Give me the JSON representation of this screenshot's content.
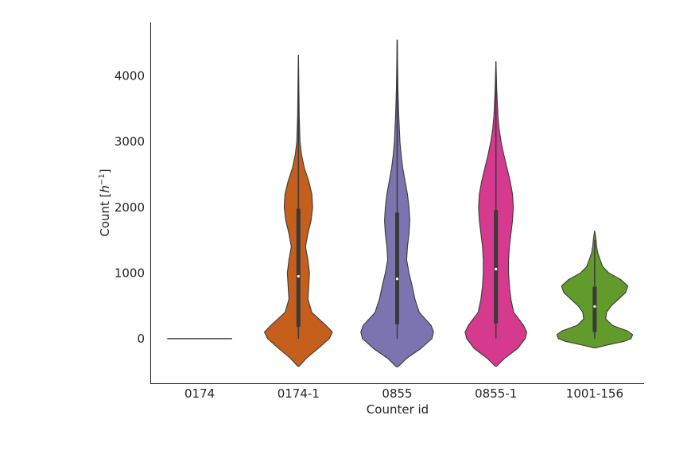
{
  "chart_data": {
    "type": "violin",
    "title": "",
    "xlabel": "Counter id",
    "ylabel_main": "Count [",
    "ylabel_italic": "h",
    "ylabel_sup": "−1",
    "ylabel_end": "]",
    "ylim": [
      -680,
      4820
    ],
    "yticks": [
      0,
      1000,
      2000,
      3000,
      4000
    ],
    "ytick_labels": [
      "0",
      "1000",
      "2000",
      "3000",
      "4000"
    ],
    "grid": false,
    "categories": [
      "0174",
      "0174-1",
      "0855",
      "0855-1",
      "1001-156"
    ],
    "violins": [
      {
        "category": "0174",
        "color": "#444444",
        "degenerate_value": 0,
        "profile": [],
        "q1": 0,
        "median": 0,
        "q3": 0,
        "whisker_low": 0,
        "whisker_high": 0
      },
      {
        "category": "0174-1",
        "color": "#c65f1b",
        "profile": [
          [
            -420,
            0.02
          ],
          [
            -300,
            0.2
          ],
          [
            -150,
            0.5
          ],
          [
            0,
            0.78
          ],
          [
            100,
            0.86
          ],
          [
            200,
            0.7
          ],
          [
            400,
            0.34
          ],
          [
            600,
            0.24
          ],
          [
            800,
            0.26
          ],
          [
            1000,
            0.28
          ],
          [
            1200,
            0.24
          ],
          [
            1400,
            0.18
          ],
          [
            1600,
            0.24
          ],
          [
            1800,
            0.32
          ],
          [
            2000,
            0.36
          ],
          [
            2200,
            0.34
          ],
          [
            2400,
            0.26
          ],
          [
            2600,
            0.15
          ],
          [
            2800,
            0.08
          ],
          [
            3000,
            0.04
          ],
          [
            3400,
            0.02
          ],
          [
            3800,
            0.012
          ],
          [
            4320,
            0.002
          ]
        ],
        "q1": 180,
        "median": 950,
        "q3": 1980,
        "whisker_low": 0,
        "whisker_high": 3900
      },
      {
        "category": "0855",
        "color": "#7b74b0",
        "profile": [
          [
            -430,
            0.02
          ],
          [
            -300,
            0.24
          ],
          [
            -150,
            0.6
          ],
          [
            0,
            0.88
          ],
          [
            100,
            0.92
          ],
          [
            200,
            0.86
          ],
          [
            400,
            0.56
          ],
          [
            600,
            0.45
          ],
          [
            800,
            0.38
          ],
          [
            1000,
            0.3
          ],
          [
            1200,
            0.24
          ],
          [
            1400,
            0.26
          ],
          [
            1600,
            0.3
          ],
          [
            1800,
            0.32
          ],
          [
            2000,
            0.3
          ],
          [
            2200,
            0.26
          ],
          [
            2400,
            0.2
          ],
          [
            2600,
            0.14
          ],
          [
            2800,
            0.1
          ],
          [
            3000,
            0.07
          ],
          [
            3400,
            0.04
          ],
          [
            3800,
            0.02
          ],
          [
            4200,
            0.01
          ],
          [
            4550,
            0.002
          ]
        ],
        "q1": 220,
        "median": 910,
        "q3": 1920,
        "whisker_low": 0,
        "whisker_high": 4550
      },
      {
        "category": "0855-1",
        "color": "#d63a8e",
        "profile": [
          [
            -420,
            0.02
          ],
          [
            -300,
            0.22
          ],
          [
            -150,
            0.55
          ],
          [
            0,
            0.74
          ],
          [
            100,
            0.78
          ],
          [
            200,
            0.7
          ],
          [
            400,
            0.45
          ],
          [
            600,
            0.38
          ],
          [
            800,
            0.34
          ],
          [
            1000,
            0.32
          ],
          [
            1200,
            0.32
          ],
          [
            1400,
            0.34
          ],
          [
            1600,
            0.38
          ],
          [
            1800,
            0.42
          ],
          [
            2000,
            0.44
          ],
          [
            2200,
            0.42
          ],
          [
            2400,
            0.36
          ],
          [
            2600,
            0.28
          ],
          [
            2800,
            0.2
          ],
          [
            3000,
            0.13
          ],
          [
            3200,
            0.08
          ],
          [
            3400,
            0.05
          ],
          [
            3800,
            0.02
          ],
          [
            4220,
            0.002
          ]
        ],
        "q1": 230,
        "median": 1060,
        "q3": 1960,
        "whisker_low": 0,
        "whisker_high": 4000
      },
      {
        "category": "1001-156",
        "color": "#629a2c",
        "profile": [
          [
            -140,
            0.02
          ],
          [
            -100,
            0.3
          ],
          [
            -40,
            0.75
          ],
          [
            0,
            0.92
          ],
          [
            60,
            0.96
          ],
          [
            120,
            0.82
          ],
          [
            200,
            0.45
          ],
          [
            300,
            0.28
          ],
          [
            400,
            0.3
          ],
          [
            500,
            0.42
          ],
          [
            600,
            0.6
          ],
          [
            700,
            0.78
          ],
          [
            800,
            0.84
          ],
          [
            900,
            0.66
          ],
          [
            1000,
            0.36
          ],
          [
            1100,
            0.2
          ],
          [
            1200,
            0.14
          ],
          [
            1300,
            0.08
          ],
          [
            1400,
            0.05
          ],
          [
            1500,
            0.035
          ],
          [
            1640,
            0.002
          ]
        ],
        "q1": 100,
        "median": 490,
        "q3": 790,
        "whisker_low": 0,
        "whisker_high": 1500
      }
    ]
  }
}
